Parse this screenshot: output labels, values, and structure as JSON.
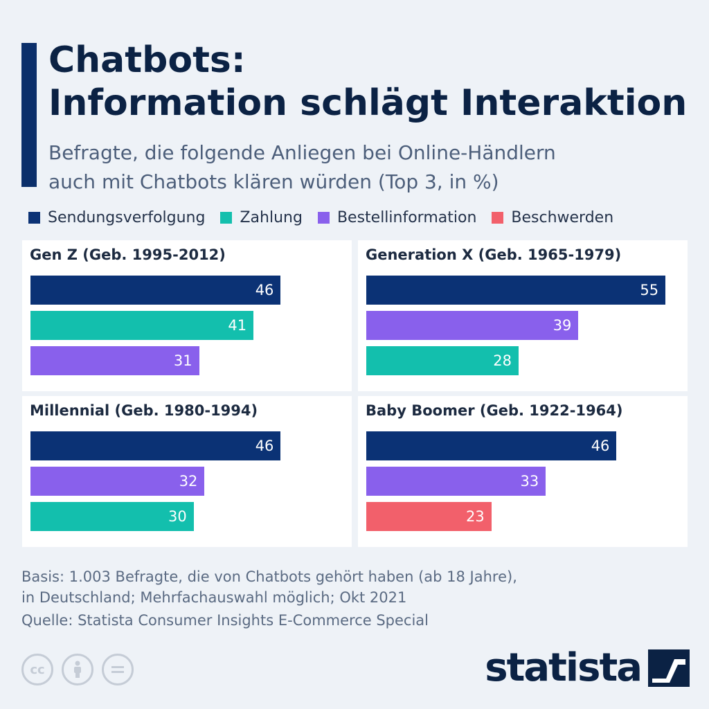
{
  "header": {
    "title_line1": "Chatbots:",
    "title_line2": "Information schlägt Interaktion",
    "subtitle_line1": "Befragte, die folgende Anliegen bei Online-Händlern",
    "subtitle_line2": "auch mit Chatbots klären würden (Top 3, in %)"
  },
  "legend": [
    {
      "label": "Sendungsverfolgung",
      "color": "#0b3275"
    },
    {
      "label": "Zahlung",
      "color": "#13bfad"
    },
    {
      "label": "Bestellinformation",
      "color": "#8960ec"
    },
    {
      "label": "Beschwerden",
      "color": "#f2606b"
    }
  ],
  "chart_data": {
    "type": "bar",
    "xlim": [
      0,
      56
    ],
    "panels": [
      {
        "title": "Gen Z (Geb. 1995-2012)",
        "bars": [
          {
            "category": "Sendungsverfolgung",
            "value": 46
          },
          {
            "category": "Zahlung",
            "value": 41
          },
          {
            "category": "Bestellinformation",
            "value": 31
          }
        ]
      },
      {
        "title": "Generation X (Geb. 1965-1979)",
        "bars": [
          {
            "category": "Sendungsverfolgung",
            "value": 55
          },
          {
            "category": "Bestellinformation",
            "value": 39
          },
          {
            "category": "Zahlung",
            "value": 28
          }
        ]
      },
      {
        "title": "Millennial (Geb. 1980-1994)",
        "bars": [
          {
            "category": "Sendungsverfolgung",
            "value": 46
          },
          {
            "category": "Bestellinformation",
            "value": 32
          },
          {
            "category": "Zahlung",
            "value": 30
          }
        ]
      },
      {
        "title": "Baby Boomer (Geb. 1922-1964)",
        "bars": [
          {
            "category": "Sendungsverfolgung",
            "value": 46
          },
          {
            "category": "Bestellinformation",
            "value": 33
          },
          {
            "category": "Beschwerden",
            "value": 23
          }
        ]
      }
    ]
  },
  "footer": {
    "basis_line1": "Basis: 1.003 Befragte, die von Chatbots gehört haben (ab 18 Jahre),",
    "basis_line2": "in Deutschland; Mehrfachauswahl möglich; Okt 2021",
    "source": "Quelle: Statista Consumer Insights E-Commerce Special",
    "brand": "statista",
    "cc_icons": [
      "cc-icon",
      "attribution-icon",
      "no-derivatives-icon"
    ]
  }
}
